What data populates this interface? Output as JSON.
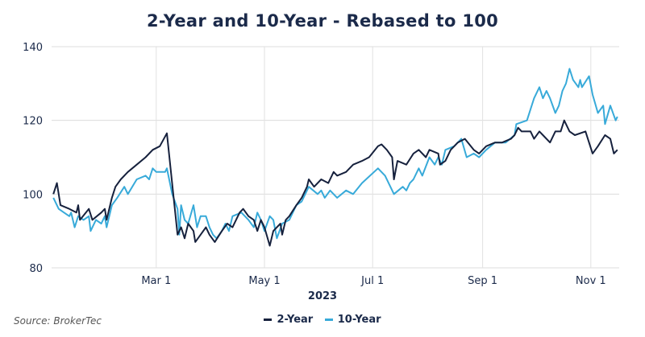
{
  "chart_data": {
    "type": "line",
    "title": "2-Year and 10-Year - Rebased to 100",
    "xlabel": "2023",
    "ylabel": "",
    "x_unit": "day of year 2023 (0 = Jan 1)",
    "xlim": [
      0,
      320
    ],
    "ylim": [
      80,
      140
    ],
    "y_ticks": [
      80,
      100,
      120,
      140
    ],
    "x_ticks": [
      {
        "day": 59,
        "label": "Mar 1"
      },
      {
        "day": 120,
        "label": "May 1"
      },
      {
        "day": 181,
        "label": "Jul 1"
      },
      {
        "day": 243,
        "label": "Sep 1"
      },
      {
        "day": 304,
        "label": "Nov 1"
      }
    ],
    "grid": true,
    "legend_position": "bottom-center",
    "source": "Source: BrokerTec",
    "series": [
      {
        "name": "2-Year",
        "color": "#16213d",
        "days": [
          1,
          3,
          5,
          10,
          14,
          15,
          16,
          21,
          23,
          28,
          30,
          31,
          34,
          36,
          39,
          43,
          48,
          53,
          57,
          61,
          65,
          71,
          73,
          75,
          77,
          80,
          81,
          84,
          87,
          89,
          92,
          96,
          99,
          102,
          106,
          108,
          111,
          114,
          116,
          118,
          120,
          123,
          125,
          129,
          130,
          132,
          134,
          138,
          141,
          144,
          145,
          148,
          152,
          156,
          159,
          161,
          166,
          170,
          175,
          179,
          184,
          186,
          189,
          192,
          193,
          195,
          200,
          204,
          207,
          211,
          213,
          218,
          219,
          222,
          225,
          227,
          229,
          233,
          238,
          241,
          245,
          250,
          254,
          259,
          261,
          263,
          265,
          270,
          272,
          275,
          277,
          281,
          284,
          287,
          289,
          292,
          295,
          301,
          303,
          305,
          308,
          312,
          315,
          317,
          319
        ],
        "values": [
          100,
          103,
          97,
          96,
          95,
          97,
          93,
          96,
          93,
          95,
          96,
          93,
          99,
          102,
          104,
          106,
          108,
          110,
          112,
          113,
          116.5,
          89,
          91,
          88,
          92,
          90,
          87,
          89,
          91,
          89,
          87,
          90,
          92,
          91,
          95,
          96,
          94,
          93,
          90,
          93,
          91,
          86,
          90,
          92,
          89,
          93,
          94,
          97,
          99,
          102,
          104,
          102,
          104,
          103,
          106,
          105,
          106,
          108,
          109,
          110,
          113,
          113.5,
          112,
          110,
          104,
          109,
          108,
          111,
          112,
          110,
          112,
          111,
          108,
          109,
          112,
          113,
          114,
          115,
          112,
          111,
          113,
          114,
          114,
          115,
          116,
          118,
          117,
          117,
          115,
          117,
          116,
          114,
          117,
          117,
          120,
          117,
          116,
          117,
          114,
          111,
          113,
          116,
          115,
          111,
          112
        ]
      },
      {
        "name": "10-Year",
        "color": "#38aad9",
        "days": [
          1,
          4,
          7,
          10,
          11,
          13,
          15,
          18,
          21,
          22,
          25,
          28,
          30,
          31,
          34,
          37,
          41,
          43,
          48,
          53,
          55,
          57,
          59,
          64,
          65,
          68,
          71,
          72,
          73,
          75,
          77,
          80,
          82,
          84,
          87,
          89,
          91,
          93,
          96,
          98,
          100,
          102,
          107,
          109,
          111,
          114,
          116,
          118,
          120,
          123,
          125,
          127,
          130,
          134,
          138,
          141,
          143,
          145,
          150,
          152,
          154,
          157,
          161,
          166,
          170,
          175,
          184,
          188,
          193,
          198,
          200,
          202,
          204,
          207,
          209,
          213,
          216,
          218,
          220,
          222,
          227,
          231,
          234,
          238,
          241,
          245,
          250,
          256,
          261,
          262,
          268,
          270,
          272,
          275,
          277,
          279,
          281,
          284,
          286,
          288,
          290,
          292,
          294,
          297,
          298,
          299,
          303,
          305,
          308,
          311,
          312,
          315,
          318,
          319
        ],
        "values": [
          99,
          96,
          95,
          94,
          95,
          91,
          94,
          93,
          94,
          90,
          93,
          92,
          94,
          91,
          97,
          99,
          102,
          100,
          104,
          105,
          104,
          107,
          106,
          106,
          107,
          100,
          96,
          89,
          97,
          93,
          92,
          97,
          91,
          94,
          94,
          91,
          89,
          88,
          90,
          92,
          90,
          94,
          95,
          94,
          93,
          91,
          95,
          93,
          90,
          94,
          93,
          88,
          92,
          93,
          97,
          98,
          100,
          102,
          100,
          101,
          99,
          101,
          99,
          101,
          100,
          103,
          107,
          105,
          100,
          102,
          101,
          103,
          104,
          107,
          105,
          110,
          108,
          110,
          108,
          112,
          113,
          115,
          110,
          111,
          110,
          112,
          114,
          114,
          116,
          119,
          120,
          123,
          126,
          129,
          126,
          128,
          126,
          122,
          124,
          128,
          130,
          134,
          131,
          129,
          131,
          129,
          132,
          127,
          122,
          124,
          119,
          124,
          120,
          121
        ]
      }
    ]
  }
}
